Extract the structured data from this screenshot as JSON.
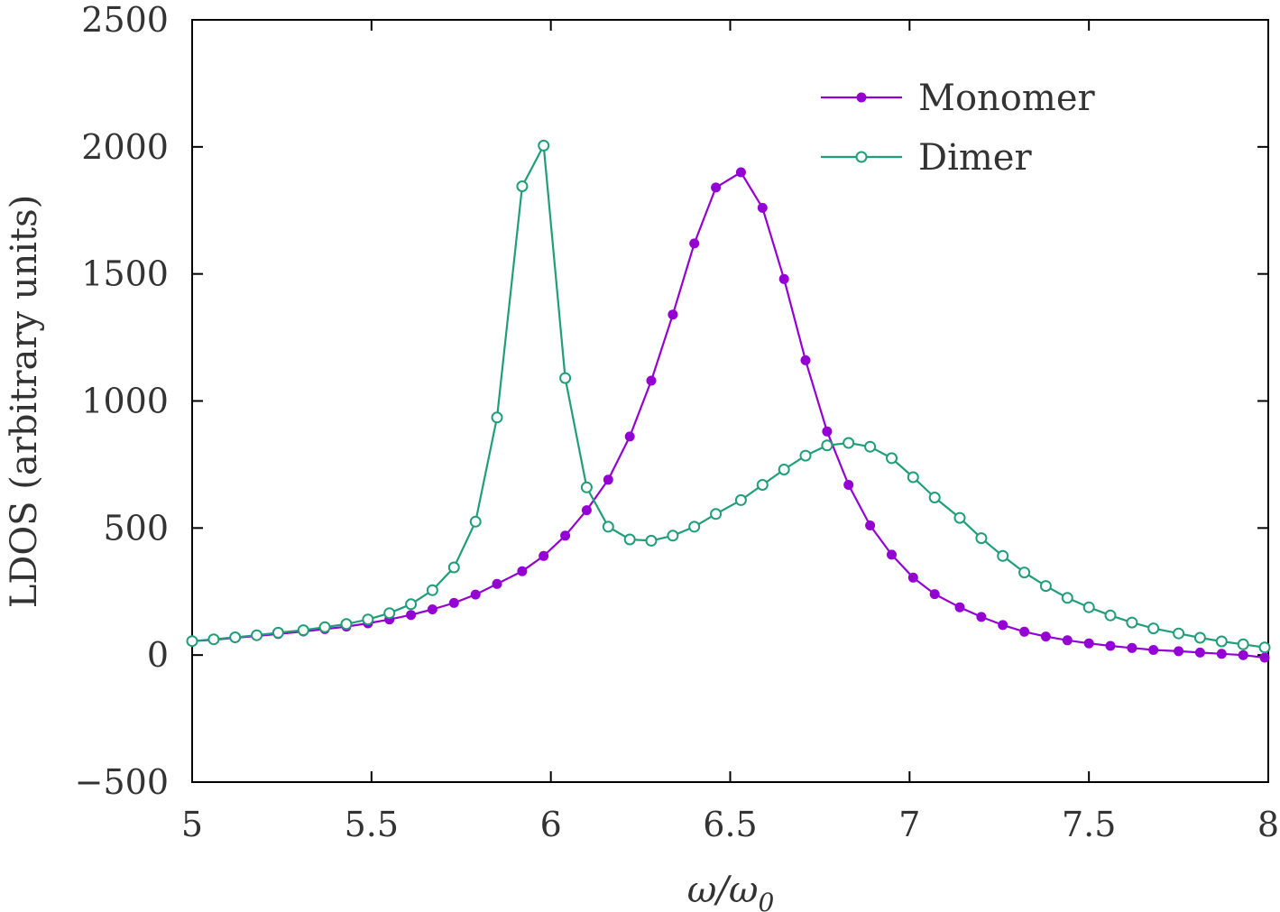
{
  "chart_data": {
    "type": "line",
    "xlabel": "ω/ω",
    "xlabel_subscript": "0",
    "ylabel": "LDOS (arbitrary units)",
    "xlim": [
      5,
      8
    ],
    "ylim": [
      -500,
      2500
    ],
    "x_ticks": [
      5,
      5.5,
      6,
      6.5,
      7,
      7.5,
      8
    ],
    "x_tick_labels": [
      "5",
      "5.5",
      "6",
      "6.5",
      "7",
      "7.5",
      "8"
    ],
    "y_ticks": [
      -500,
      0,
      500,
      1000,
      1500,
      2000,
      2500
    ],
    "y_tick_labels": [
      "−500",
      "0",
      "500",
      "1000",
      "1500",
      "2000",
      "2500"
    ],
    "grid": false,
    "legend_position": "top-right",
    "series": [
      {
        "name": "Monomer",
        "color": "#9400d3",
        "marker": "filled-circle",
        "x": [
          5.0,
          5.06,
          5.12,
          5.18,
          5.24,
          5.31,
          5.37,
          5.43,
          5.49,
          5.55,
          5.61,
          5.67,
          5.73,
          5.79,
          5.85,
          5.92,
          5.98,
          6.04,
          6.1,
          6.16,
          6.22,
          6.28,
          6.34,
          6.4,
          6.46,
          6.53,
          6.59,
          6.65,
          6.71,
          6.77,
          6.83,
          6.89,
          6.95,
          7.01,
          7.07,
          7.14,
          7.2,
          7.26,
          7.32,
          7.38,
          7.44,
          7.5,
          7.56,
          7.62,
          7.68,
          7.75,
          7.81,
          7.87,
          7.93,
          7.99
        ],
        "values": [
          55,
          60,
          68,
          75,
          83,
          93,
          102,
          112,
          125,
          140,
          158,
          180,
          205,
          238,
          280,
          330,
          390,
          470,
          570,
          690,
          860,
          1080,
          1340,
          1620,
          1840,
          1900,
          1760,
          1480,
          1160,
          880,
          670,
          510,
          395,
          305,
          240,
          188,
          150,
          118,
          92,
          73,
          58,
          46,
          36,
          28,
          20,
          15,
          10,
          5,
          0,
          -10
        ]
      },
      {
        "name": "Dimer",
        "color": "#1f9e78",
        "marker": "open-circle",
        "x": [
          5.0,
          5.06,
          5.12,
          5.18,
          5.24,
          5.31,
          5.37,
          5.43,
          5.49,
          5.55,
          5.61,
          5.67,
          5.73,
          5.79,
          5.85,
          5.92,
          5.98,
          6.04,
          6.1,
          6.16,
          6.22,
          6.28,
          6.34,
          6.4,
          6.46,
          6.53,
          6.59,
          6.65,
          6.71,
          6.77,
          6.83,
          6.89,
          6.95,
          7.01,
          7.07,
          7.14,
          7.2,
          7.26,
          7.32,
          7.38,
          7.44,
          7.5,
          7.56,
          7.62,
          7.68,
          7.75,
          7.81,
          7.87,
          7.93,
          7.99
        ],
        "values": [
          55,
          62,
          70,
          78,
          88,
          98,
          110,
          122,
          140,
          165,
          200,
          255,
          345,
          525,
          935,
          1845,
          2005,
          1090,
          660,
          505,
          455,
          450,
          470,
          505,
          555,
          610,
          670,
          730,
          785,
          825,
          835,
          820,
          775,
          700,
          620,
          540,
          460,
          390,
          325,
          272,
          225,
          188,
          156,
          128,
          105,
          85,
          68,
          54,
          42,
          30
        ]
      }
    ]
  }
}
